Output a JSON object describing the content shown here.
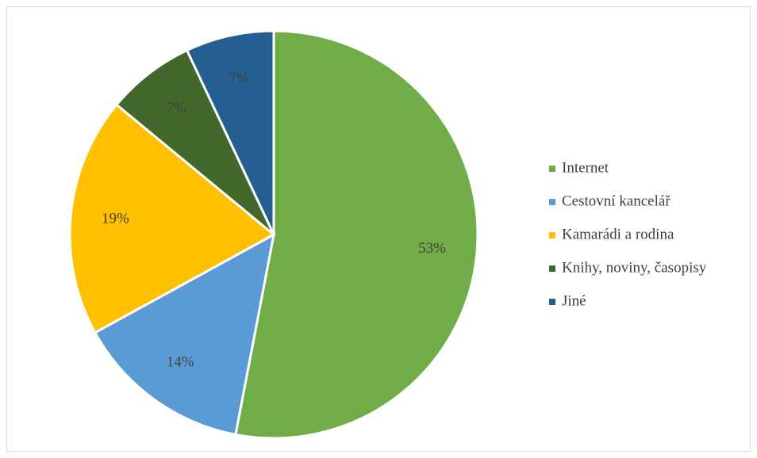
{
  "chart_data": {
    "type": "pie",
    "categories": [
      "Internet",
      "Cestovní kancelář",
      "Kamarádi a rodina",
      "Knihy, noviny, časopisy",
      "Jiné"
    ],
    "values": [
      53,
      14,
      19,
      7,
      7
    ],
    "value_labels": [
      "53%",
      "14%",
      "19%",
      "7%",
      "7%"
    ],
    "colors": [
      "#70ad47",
      "#5b9bd5",
      "#ffc000",
      "#43682b",
      "#255e91"
    ],
    "legend": "right"
  }
}
